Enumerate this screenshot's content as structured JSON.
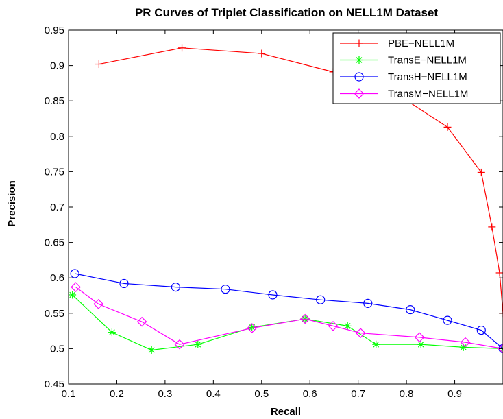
{
  "chart_data": {
    "type": "line",
    "title": "PR Curves of Triplet Classification on NELL1M Dataset",
    "xlabel": "Recall",
    "ylabel": "Precision",
    "xlim": [
      0.1,
      1.0
    ],
    "ylim": [
      0.45,
      0.95
    ],
    "xticks": [
      "0.1",
      "0.2",
      "0.3",
      "0.4",
      "0.5",
      "0.6",
      "0.7",
      "0.8",
      "0.9"
    ],
    "yticks": [
      "0.45",
      "0.5",
      "0.55",
      "0.6",
      "0.65",
      "0.7",
      "0.75",
      "0.8",
      "0.85",
      "0.9",
      "0.95"
    ],
    "grid": false,
    "legend_position": "top-right",
    "series": [
      {
        "name": "PBE−NELL1M",
        "color": "#ff0000",
        "marker": "plus",
        "x": [
          0.163,
          0.335,
          0.5,
          0.648,
          0.775,
          0.885,
          0.955,
          0.977,
          0.993,
          1.0
        ],
        "y": [
          0.902,
          0.925,
          0.917,
          0.891,
          0.862,
          0.813,
          0.749,
          0.672,
          0.607,
          0.55
        ]
      },
      {
        "name": "TransE−NELL1M",
        "color": "#00ff00",
        "marker": "asterisk",
        "x": [
          0.108,
          0.19,
          0.272,
          0.368,
          0.48,
          0.59,
          0.678,
          0.737,
          0.83,
          0.918,
          1.0
        ],
        "y": [
          0.576,
          0.523,
          0.498,
          0.506,
          0.53,
          0.542,
          0.532,
          0.506,
          0.506,
          0.502,
          0.5
        ]
      },
      {
        "name": "TransH−NELL1M",
        "color": "#0000ff",
        "marker": "circle",
        "x": [
          0.113,
          0.215,
          0.322,
          0.425,
          0.523,
          0.622,
          0.72,
          0.808,
          0.885,
          0.955,
          1.0
        ],
        "y": [
          0.606,
          0.592,
          0.587,
          0.584,
          0.576,
          0.569,
          0.564,
          0.555,
          0.54,
          0.526,
          0.5
        ]
      },
      {
        "name": "TransM−NELL1M",
        "color": "#ff00ff",
        "marker": "diamond",
        "x": [
          0.115,
          0.162,
          0.252,
          0.33,
          0.48,
          0.59,
          0.648,
          0.705,
          0.827,
          0.922,
          1.0
        ],
        "y": [
          0.587,
          0.563,
          0.538,
          0.506,
          0.529,
          0.542,
          0.532,
          0.522,
          0.516,
          0.509,
          0.5
        ]
      }
    ]
  }
}
